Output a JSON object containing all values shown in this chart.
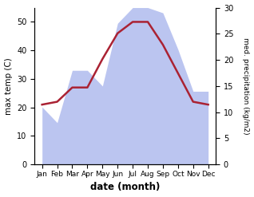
{
  "months": [
    "Jan",
    "Feb",
    "Mar",
    "Apr",
    "May",
    "Jun",
    "Jul",
    "Aug",
    "Sep",
    "Oct",
    "Nov",
    "Dec"
  ],
  "temperature": [
    21,
    22,
    27,
    27,
    37,
    46,
    50,
    50,
    42,
    32,
    22,
    21
  ],
  "precipitation": [
    11,
    8,
    18,
    18,
    15,
    27,
    30,
    30,
    29,
    22,
    14,
    14
  ],
  "temp_color": "#aa2233",
  "precip_color": "#b0bbee",
  "temp_ylim": [
    0,
    55
  ],
  "precip_ylim": [
    0,
    30
  ],
  "temp_yticks": [
    0,
    10,
    20,
    30,
    40,
    50
  ],
  "precip_yticks": [
    0,
    5,
    10,
    15,
    20,
    25,
    30
  ],
  "ylabel_left": "max temp (C)",
  "ylabel_right": "med. precipitation (kg/m2)",
  "xlabel": "date (month)",
  "bg_color": "#ffffff",
  "temp_linewidth": 1.8,
  "figsize": [
    3.18,
    2.47
  ],
  "dpi": 100
}
